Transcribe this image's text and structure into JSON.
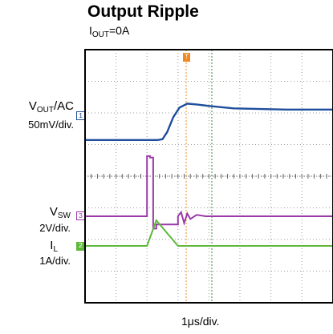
{
  "chart_data": {
    "type": "line",
    "title": "Output Ripple",
    "subtitle": {
      "main": "I",
      "sub": "OUT",
      "rest": "=0A"
    },
    "x_scale_label": "1μs/div.",
    "grid": true,
    "channels": [
      {
        "id": "1",
        "name_main": "V",
        "name_sub": "OUT",
        "name_rest": "/AC",
        "scale_label": "50mV/div.",
        "color": "#1f4e9c",
        "points": [
          [
            0,
            -0.3
          ],
          [
            2.35,
            -0.3
          ],
          [
            2.5,
            -0.28
          ],
          [
            2.65,
            -0.1
          ],
          [
            2.85,
            0.28
          ],
          [
            3.05,
            0.52
          ],
          [
            3.3,
            0.62
          ],
          [
            3.6,
            0.6
          ],
          [
            4.0,
            0.56
          ],
          [
            4.8,
            0.5
          ],
          [
            6.5,
            0.47
          ],
          [
            8.0,
            0.47
          ]
        ]
      },
      {
        "id": "3",
        "name_main": "V",
        "name_sub": "SW",
        "name_rest": "",
        "scale_label": "2V/div.",
        "color": "#9b3aa8",
        "points": [
          [
            0,
            0
          ],
          [
            2.0,
            0
          ],
          [
            2.0,
            2.2
          ],
          [
            2.1,
            2.2
          ],
          [
            2.1,
            2.15
          ],
          [
            2.2,
            2.15
          ],
          [
            2.2,
            -0.45
          ],
          [
            2.3,
            -0.45
          ],
          [
            2.3,
            -0.3
          ],
          [
            3.0,
            -0.3
          ],
          [
            3.0,
            0
          ],
          [
            3.1,
            0.15
          ],
          [
            3.2,
            -0.25
          ],
          [
            3.3,
            0.1
          ],
          [
            3.4,
            -0.1
          ],
          [
            3.6,
            0.05
          ],
          [
            3.9,
            0
          ],
          [
            8.0,
            0
          ]
        ]
      },
      {
        "id": "2",
        "name_main": "I",
        "name_sub": "L",
        "name_rest": "",
        "scale_label": "1A/div.",
        "color": "#5fb83a",
        "points": [
          [
            0,
            0
          ],
          [
            2.0,
            0
          ],
          [
            2.3,
            0.95
          ],
          [
            3.0,
            0
          ],
          [
            8.0,
            0
          ]
        ]
      }
    ],
    "trigger_marker": "T",
    "markers": [
      "1",
      "3",
      "2"
    ]
  }
}
